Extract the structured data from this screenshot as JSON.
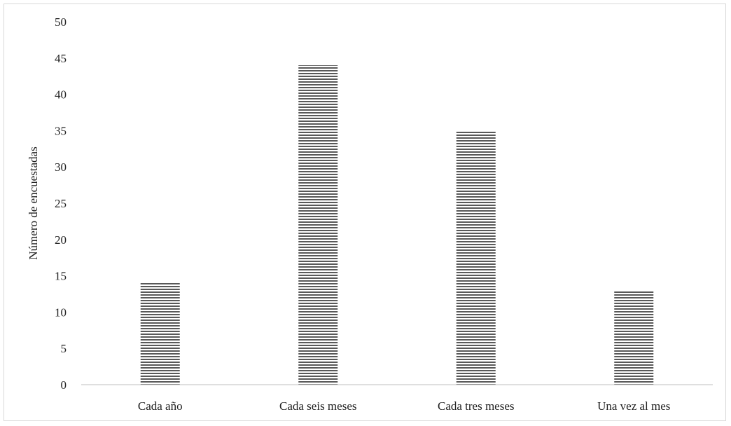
{
  "chart_data": {
    "type": "bar",
    "title": "",
    "xlabel": "",
    "ylabel": "Número de encuestadas",
    "categories": [
      "Cada año",
      "Cada seis meses",
      "Cada tres meses",
      "Una vez al mes"
    ],
    "values": [
      14,
      44,
      35,
      13
    ],
    "ylim": [
      0,
      50
    ],
    "yticks": [
      "0",
      "5",
      "10",
      "15",
      "20",
      "25",
      "30",
      "35",
      "40",
      "45",
      "50"
    ],
    "grid": false,
    "legend": "none",
    "bar_fill": "horizontal-stripes",
    "bar_color": "#595959"
  }
}
